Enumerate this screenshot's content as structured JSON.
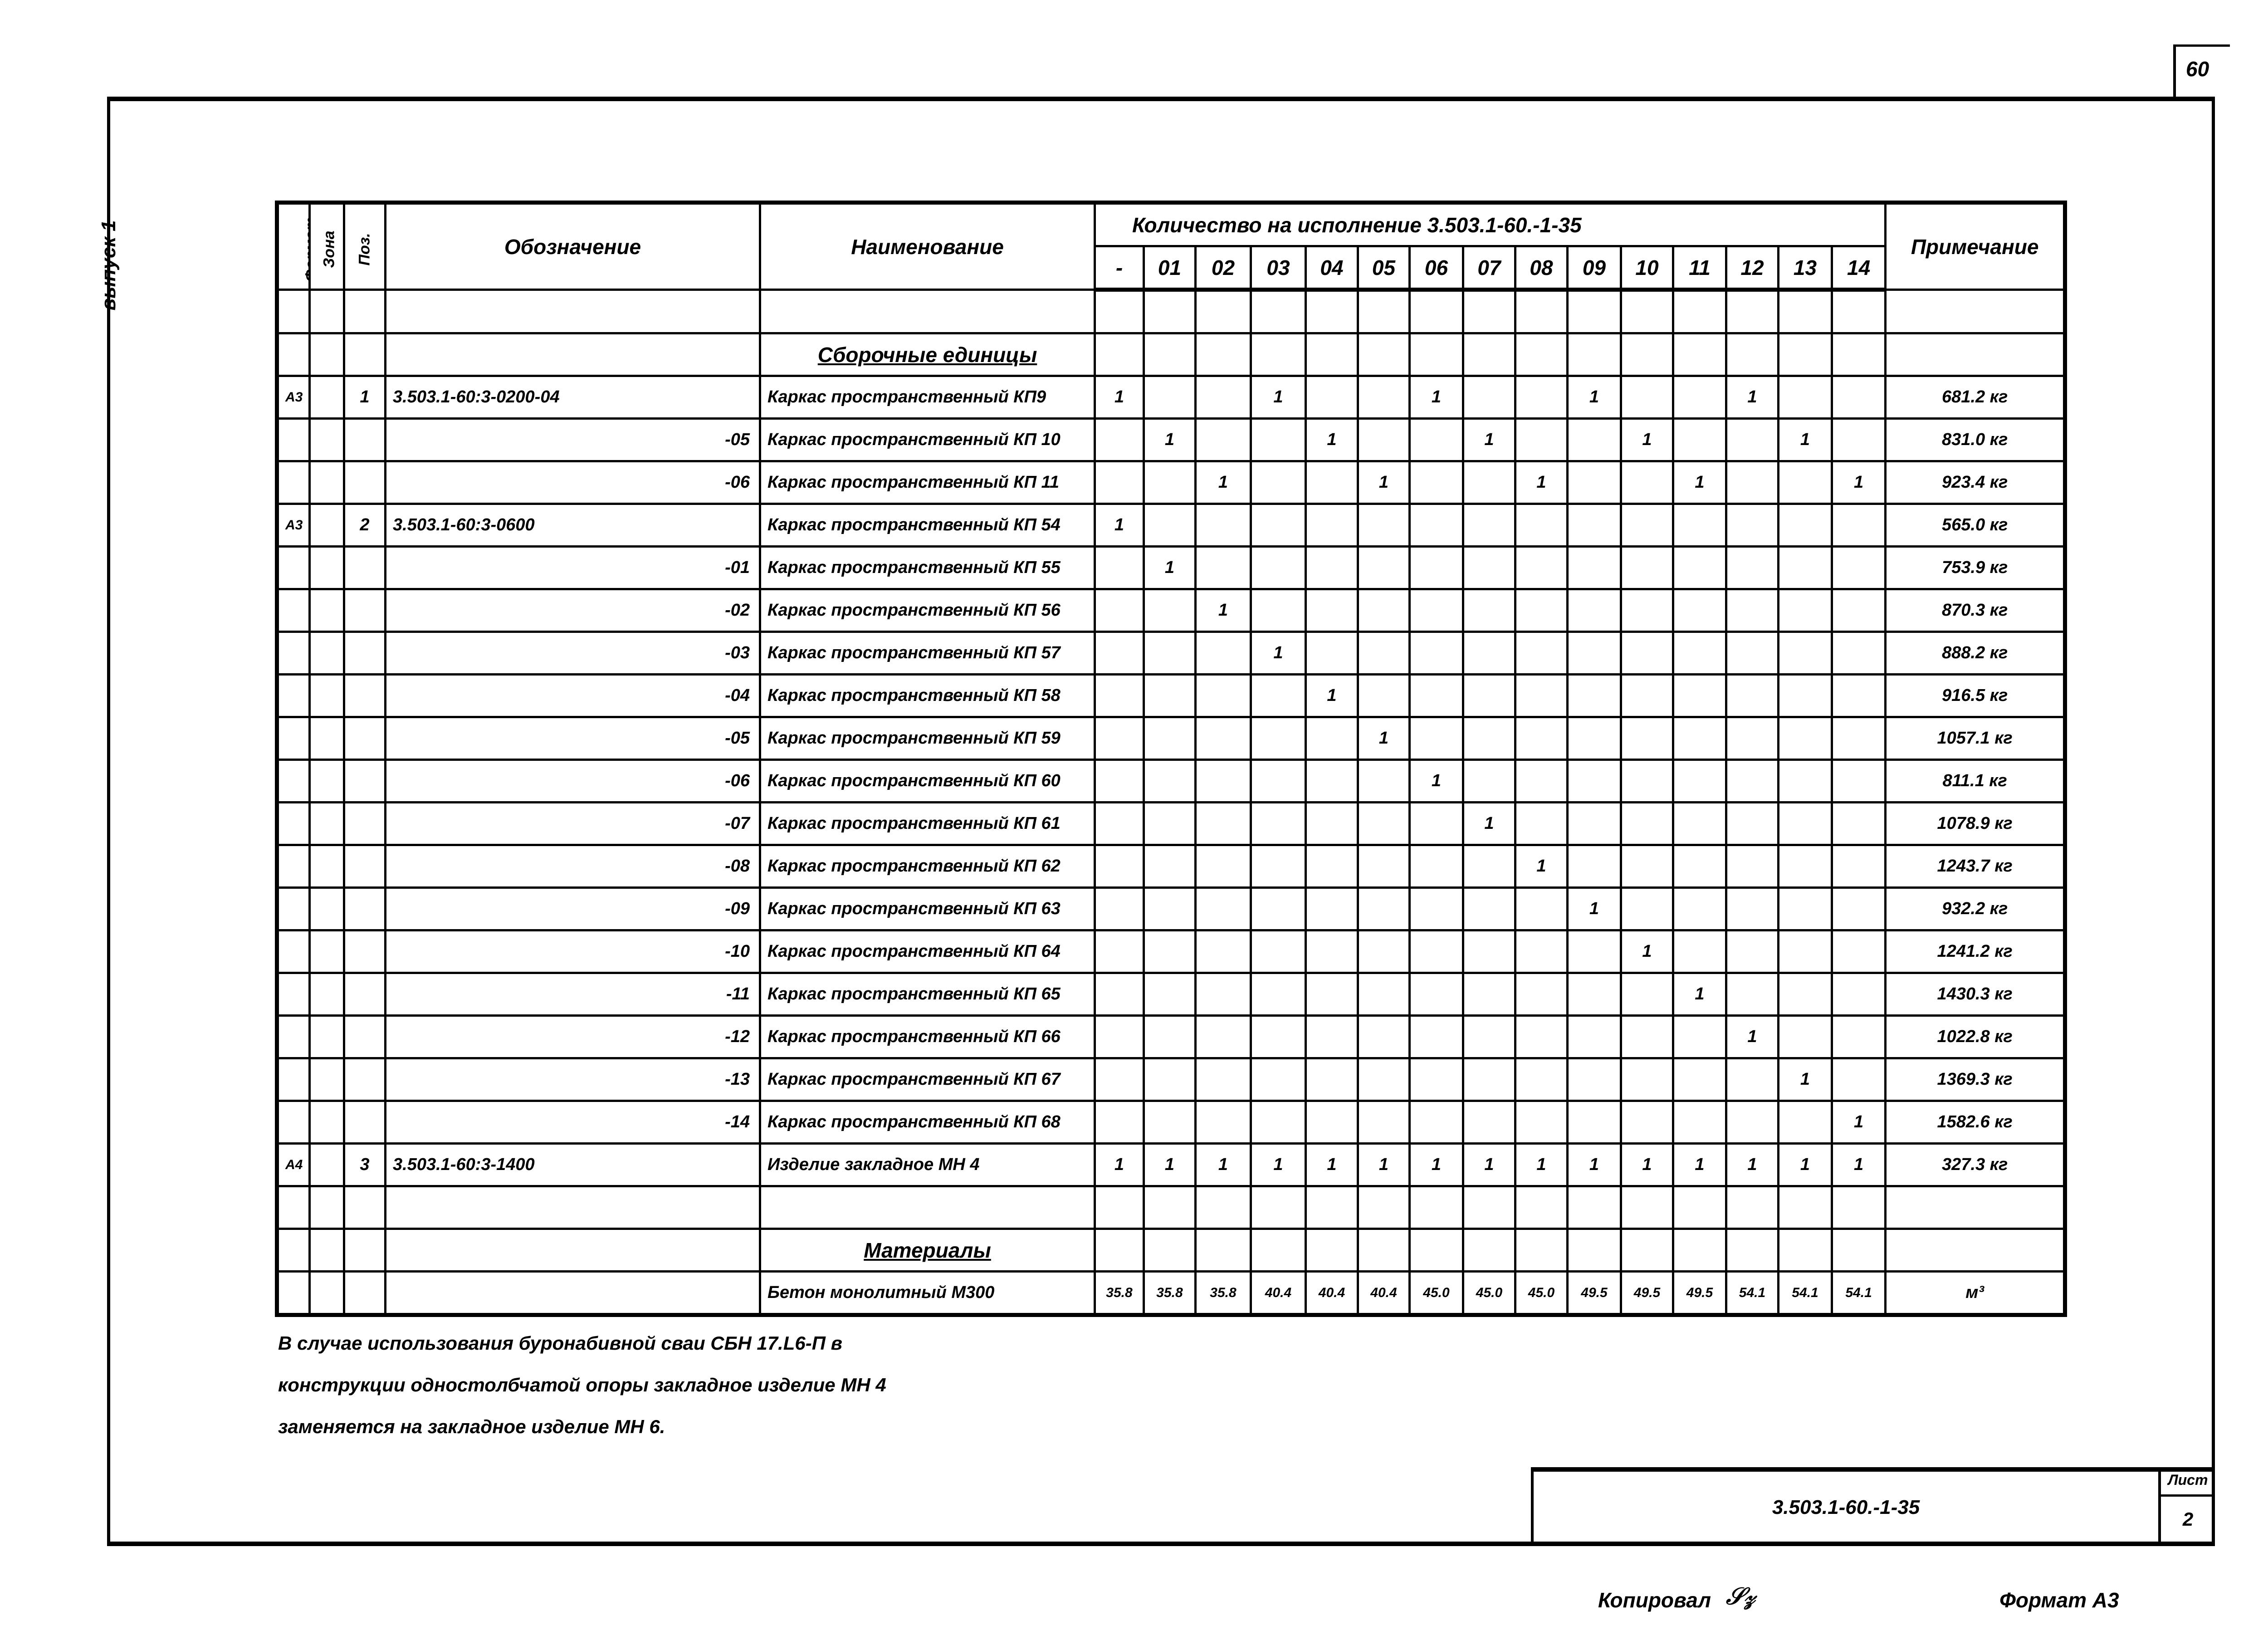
{
  "page_number": "60",
  "margin_label": "выпуск 1",
  "table": {
    "headers": {
      "format": "Формат",
      "zone": "Зона",
      "pos": "Поз.",
      "designation": "Обозначение",
      "name": "Наименование",
      "qty_group": "Количество на исполнение  3.503.1-60.-1-35",
      "qty_columns": [
        "-",
        "01",
        "02",
        "03",
        "04",
        "05",
        "06",
        "07",
        "08",
        "09",
        "10",
        "11",
        "12",
        "13",
        "14"
      ],
      "note": "Примечание"
    },
    "sections": {
      "assembly": "Сборочные единицы",
      "materials": "Материалы"
    },
    "rows": [
      {
        "format": "А3",
        "pos": "1",
        "designation": "3.503.1-60:3-0200-04",
        "name": "Каркас пространственный КП9",
        "qty": [
          "1",
          "",
          "",
          "1",
          "",
          "",
          "1",
          "",
          "",
          "1",
          "",
          "",
          "1",
          "",
          ""
        ],
        "note": "681.2 кг"
      },
      {
        "format": "",
        "pos": "",
        "designation": "-05",
        "name": "Каркас пространственный КП 10",
        "qty": [
          "",
          "1",
          "",
          "",
          "1",
          "",
          "",
          "1",
          "",
          "",
          "1",
          "",
          "",
          "1",
          ""
        ],
        "note": "831.0 кг"
      },
      {
        "format": "",
        "pos": "",
        "designation": "-06",
        "name": "Каркас пространственный КП 11",
        "qty": [
          "",
          "",
          "1",
          "",
          "",
          "1",
          "",
          "",
          "1",
          "",
          "",
          "1",
          "",
          "",
          "1"
        ],
        "note": "923.4 кг"
      },
      {
        "format": "А3",
        "pos": "2",
        "designation": "3.503.1-60:3-0600",
        "name": "Каркас пространственный КП 54",
        "qty": [
          "1",
          "",
          "",
          "",
          "",
          "",
          "",
          "",
          "",
          "",
          "",
          "",
          "",
          "",
          ""
        ],
        "note": "565.0 кг"
      },
      {
        "format": "",
        "pos": "",
        "designation": "-01",
        "name": "Каркас пространственный КП 55",
        "qty": [
          "",
          "1",
          "",
          "",
          "",
          "",
          "",
          "",
          "",
          "",
          "",
          "",
          "",
          "",
          ""
        ],
        "note": "753.9 кг"
      },
      {
        "format": "",
        "pos": "",
        "designation": "-02",
        "name": "Каркас пространственный КП 56",
        "qty": [
          "",
          "",
          "1",
          "",
          "",
          "",
          "",
          "",
          "",
          "",
          "",
          "",
          "",
          "",
          ""
        ],
        "note": "870.3 кг"
      },
      {
        "format": "",
        "pos": "",
        "designation": "-03",
        "name": "Каркас пространственный КП 57",
        "qty": [
          "",
          "",
          "",
          "1",
          "",
          "",
          "",
          "",
          "",
          "",
          "",
          "",
          "",
          "",
          ""
        ],
        "note": "888.2 кг"
      },
      {
        "format": "",
        "pos": "",
        "designation": "-04",
        "name": "Каркас пространственный КП 58",
        "qty": [
          "",
          "",
          "",
          "",
          "1",
          "",
          "",
          "",
          "",
          "",
          "",
          "",
          "",
          "",
          ""
        ],
        "note": "916.5 кг"
      },
      {
        "format": "",
        "pos": "",
        "designation": "-05",
        "name": "Каркас пространственный КП 59",
        "qty": [
          "",
          "",
          "",
          "",
          "",
          "1",
          "",
          "",
          "",
          "",
          "",
          "",
          "",
          "",
          ""
        ],
        "note": "1057.1 кг"
      },
      {
        "format": "",
        "pos": "",
        "designation": "-06",
        "name": "Каркас пространственный КП 60",
        "qty": [
          "",
          "",
          "",
          "",
          "",
          "",
          "1",
          "",
          "",
          "",
          "",
          "",
          "",
          "",
          ""
        ],
        "note": "811.1 кг"
      },
      {
        "format": "",
        "pos": "",
        "designation": "-07",
        "name": "Каркас пространственный КП 61",
        "qty": [
          "",
          "",
          "",
          "",
          "",
          "",
          "",
          "1",
          "",
          "",
          "",
          "",
          "",
          "",
          ""
        ],
        "note": "1078.9 кг"
      },
      {
        "format": "",
        "pos": "",
        "designation": "-08",
        "name": "Каркас пространственный КП 62",
        "qty": [
          "",
          "",
          "",
          "",
          "",
          "",
          "",
          "",
          "1",
          "",
          "",
          "",
          "",
          "",
          ""
        ],
        "note": "1243.7 кг"
      },
      {
        "format": "",
        "pos": "",
        "designation": "-09",
        "name": "Каркас пространственный КП 63",
        "qty": [
          "",
          "",
          "",
          "",
          "",
          "",
          "",
          "",
          "",
          "1",
          "",
          "",
          "",
          "",
          ""
        ],
        "note": "932.2 кг"
      },
      {
        "format": "",
        "pos": "",
        "designation": "-10",
        "name": "Каркас пространственный КП 64",
        "qty": [
          "",
          "",
          "",
          "",
          "",
          "",
          "",
          "",
          "",
          "",
          "1",
          "",
          "",
          "",
          ""
        ],
        "note": "1241.2 кг"
      },
      {
        "format": "",
        "pos": "",
        "designation": "-11",
        "name": "Каркас пространственный КП 65",
        "qty": [
          "",
          "",
          "",
          "",
          "",
          "",
          "",
          "",
          "",
          "",
          "",
          "1",
          "",
          "",
          ""
        ],
        "note": "1430.3 кг"
      },
      {
        "format": "",
        "pos": "",
        "designation": "-12",
        "name": "Каркас пространственный КП 66",
        "qty": [
          "",
          "",
          "",
          "",
          "",
          "",
          "",
          "",
          "",
          "",
          "",
          "",
          "1",
          "",
          ""
        ],
        "note": "1022.8 кг"
      },
      {
        "format": "",
        "pos": "",
        "designation": "-13",
        "name": "Каркас пространственный КП 67",
        "qty": [
          "",
          "",
          "",
          "",
          "",
          "",
          "",
          "",
          "",
          "",
          "",
          "",
          "",
          "1",
          ""
        ],
        "note": "1369.3 кг"
      },
      {
        "format": "",
        "pos": "",
        "designation": "-14",
        "name": "Каркас пространственный КП 68",
        "qty": [
          "",
          "",
          "",
          "",
          "",
          "",
          "",
          "",
          "",
          "",
          "",
          "",
          "",
          "",
          "1"
        ],
        "note": "1582.6 кг"
      },
      {
        "format": "А4",
        "pos": "3",
        "designation": "3.503.1-60:3-1400",
        "name": "Изделие закладное МН 4",
        "qty": [
          "1",
          "1",
          "1",
          "1",
          "1",
          "1",
          "1",
          "1",
          "1",
          "1",
          "1",
          "1",
          "1",
          "1",
          "1"
        ],
        "note": "327.3 кг"
      }
    ],
    "material_row": {
      "name": "Бетон монолитный М300",
      "qty": [
        "35.8",
        "35.8",
        "35.8",
        "40.4",
        "40.4",
        "40.4",
        "45.0",
        "45.0",
        "45.0",
        "49.5",
        "49.5",
        "49.5",
        "54.1",
        "54.1",
        "54.1"
      ],
      "note": "м³"
    }
  },
  "notes": [
    "В случае использования буронабивной сваи СБН 17.L6-П в",
    "конструкции одностолбчатой опоры закладное изделие МН 4",
    "заменяется на закладное изделие МН 6."
  ],
  "title_block": {
    "designation": "3.503.1-60.-1-35",
    "sheet_label": "Лист",
    "sheet_number": "2"
  },
  "footer": {
    "copied_label": "Копировал",
    "format_label": "Формат А3"
  }
}
